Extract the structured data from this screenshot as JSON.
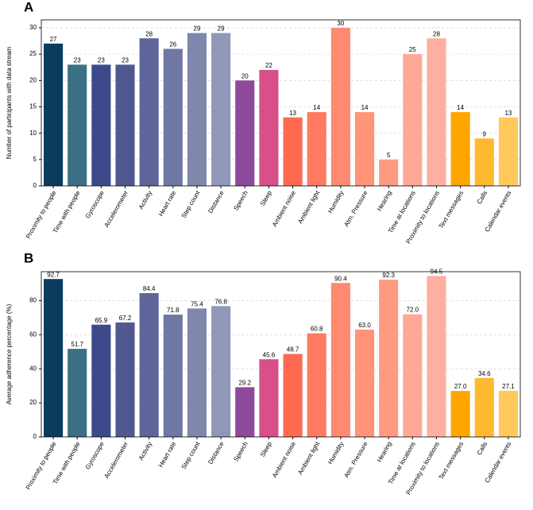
{
  "chart_data": [
    {
      "type": "bar",
      "label": "A",
      "ylabel": "Number of participants with data stream",
      "categories": [
        "Proximity to people",
        "Time with people",
        "Gyroscope",
        "Accelerometer",
        "Activity",
        "Heart rate",
        "Step count",
        "Distance",
        "Speech",
        "Sleep",
        "Ambient noise",
        "Ambient light",
        "Humidity",
        "Atm. Pressure",
        "Hearing",
        "Time at locations",
        "Proximity to locations",
        "Text messages",
        "Calls",
        "Calendar events"
      ],
      "values": [
        27,
        23,
        23,
        23,
        28,
        26,
        29,
        29,
        20,
        22,
        13,
        14,
        30,
        14,
        5,
        25,
        28,
        14,
        9,
        13
      ],
      "colors": [
        "#0b3c5d",
        "#3a6f84",
        "#3d4a8a",
        "#4f5990",
        "#5e6699",
        "#6f78a3",
        "#7f87ad",
        "#9097b8",
        "#8e4a9a",
        "#d94f8a",
        "#ff6a50",
        "#ff7a60",
        "#ff8a70",
        "#ff9478",
        "#ff9a82",
        "#ffa898",
        "#ffb0a0",
        "#ffa500",
        "#ffb830",
        "#ffc95c"
      ],
      "ylim": [
        0,
        31.5
      ],
      "yticks": [
        0,
        5,
        10,
        15,
        20,
        25,
        30
      ],
      "grid": true
    },
    {
      "type": "bar",
      "label": "B",
      "ylabel": "Average adherence percentage (%)",
      "categories": [
        "Proximity to people",
        "Time with people",
        "Gyroscope",
        "Accelerometer",
        "Activity",
        "Heart rate",
        "Step count",
        "Distance",
        "Speech",
        "Sleep",
        "Ambient noise",
        "Ambient light",
        "Humidity",
        "Atm. Pressure",
        "Hearing",
        "Time at locations",
        "Proximity to locations",
        "Text messages",
        "Calls",
        "Calendar events"
      ],
      "values": [
        92.7,
        51.7,
        65.9,
        67.2,
        84.4,
        71.8,
        75.4,
        76.8,
        29.2,
        45.6,
        48.7,
        60.8,
        90.4,
        63.0,
        92.3,
        72.0,
        94.5,
        27.0,
        34.6,
        27.1
      ],
      "value_labels": [
        "92.7",
        "51.7",
        "65.9",
        "67.2",
        "84.4",
        "71.8",
        "75.4",
        "76.8",
        "29.2",
        "45.6",
        "48.7",
        "60.8",
        "90.4",
        "63.0",
        "92.3",
        "72.0",
        "94.5",
        "27.0",
        "34.6",
        "27.1"
      ],
      "colors": [
        "#0b3c5d",
        "#3a6f84",
        "#3d4a8a",
        "#4f5990",
        "#5e6699",
        "#6f78a3",
        "#7f87ad",
        "#9097b8",
        "#8e4a9a",
        "#d94f8a",
        "#ff6a50",
        "#ff7a60",
        "#ff8a70",
        "#ff9478",
        "#ff9a82",
        "#ffa898",
        "#ffb0a0",
        "#ffa500",
        "#ffb830",
        "#ffc95c"
      ],
      "ylim": [
        0,
        97
      ],
      "yticks": [
        0,
        20,
        40,
        60,
        80
      ],
      "grid": true
    }
  ]
}
